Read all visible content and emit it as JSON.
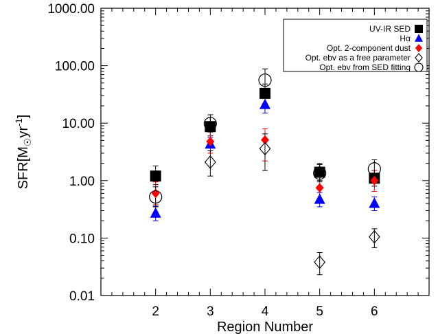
{
  "chart_data": {
    "type": "scatter",
    "title": "",
    "xlabel": "Region Number",
    "ylabel": {
      "prefix": "SFR[M",
      "sub": "☉",
      "mid": "yr",
      "sup": "-1",
      "suffix": "]"
    },
    "xlim": [
      1,
      7
    ],
    "ylim": [
      0.01,
      1000
    ],
    "y_scale": "log",
    "x_ticks": [
      2,
      3,
      4,
      5,
      6
    ],
    "x_tick_labels": [
      "2",
      "3",
      "4",
      "5",
      "6"
    ],
    "y_ticks": [
      0.01,
      0.1,
      1,
      10,
      100,
      1000
    ],
    "y_tick_labels": [
      "0.01",
      "0.10",
      "1.00",
      "10.00",
      "100.00",
      "1000.00"
    ],
    "grid": false,
    "legend_position": "top-right",
    "series": [
      {
        "name": "UV-IR SED",
        "marker": "filled-square",
        "color": "#000000",
        "points": [
          {
            "x": 2,
            "y": 1.2,
            "lo": 0.85,
            "hi": 1.8
          },
          {
            "x": 3,
            "y": 8.7,
            "lo": 6.0,
            "hi": 12.5
          },
          {
            "x": 4,
            "y": 33,
            "lo": 22,
            "hi": 48
          },
          {
            "x": 5,
            "y": 1.4,
            "lo": 1.0,
            "hi": 2.0
          },
          {
            "x": 6,
            "y": 1.1,
            "lo": 0.8,
            "hi": 1.5
          }
        ]
      },
      {
        "name": "Hα",
        "marker": "filled-triangle",
        "color": "#0000ff",
        "points": [
          {
            "x": 2,
            "y": 0.27,
            "lo": 0.2,
            "hi": 0.36
          },
          {
            "x": 3,
            "y": 4.3,
            "lo": 3.3,
            "hi": 5.6
          },
          {
            "x": 4,
            "y": 21,
            "lo": 15,
            "hi": 28
          },
          {
            "x": 5,
            "y": 0.47,
            "lo": 0.35,
            "hi": 0.62
          },
          {
            "x": 6,
            "y": 0.4,
            "lo": 0.3,
            "hi": 0.52
          }
        ]
      },
      {
        "name": "Opt. 2-component dust",
        "marker": "filled-diamond",
        "color": "#ff0000",
        "points": [
          {
            "x": 2,
            "y": 0.6,
            "lo": 0.38,
            "hi": 0.95
          },
          {
            "x": 3,
            "y": 4.8,
            "lo": 3.0,
            "hi": 7.5
          },
          {
            "x": 4,
            "y": 5.1,
            "lo": 2.2,
            "hi": 8.0
          },
          {
            "x": 5,
            "y": 0.75,
            "lo": 0.48,
            "hi": 1.15
          },
          {
            "x": 6,
            "y": 1.0,
            "lo": 0.65,
            "hi": 1.5
          }
        ]
      },
      {
        "name": "Opt. ebv as a free parameter",
        "marker": "open-diamond",
        "color": "#000000",
        "points": [
          {
            "x": 3,
            "y": 2.1,
            "lo": 1.2,
            "hi": 3.3
          },
          {
            "x": 4,
            "y": 3.6,
            "lo": 1.5,
            "hi": 6.5
          },
          {
            "x": 5,
            "y": 0.038,
            "lo": 0.023,
            "hi": 0.056
          },
          {
            "x": 6,
            "y": 0.105,
            "lo": 0.068,
            "hi": 0.145
          }
        ]
      },
      {
        "name": "Opt. ebv from SED fitting",
        "marker": "open-circle",
        "color": "#000000",
        "points": [
          {
            "x": 2,
            "y": 0.52,
            "lo": 0.35,
            "hi": 0.78
          },
          {
            "x": 3,
            "y": 9.8,
            "lo": 7.0,
            "hi": 14.0
          },
          {
            "x": 4,
            "y": 56,
            "lo": 38,
            "hi": 88
          },
          {
            "x": 5,
            "y": 1.35,
            "lo": 0.95,
            "hi": 1.9
          },
          {
            "x": 6,
            "y": 1.6,
            "lo": 1.15,
            "hi": 2.3
          }
        ]
      }
    ]
  }
}
